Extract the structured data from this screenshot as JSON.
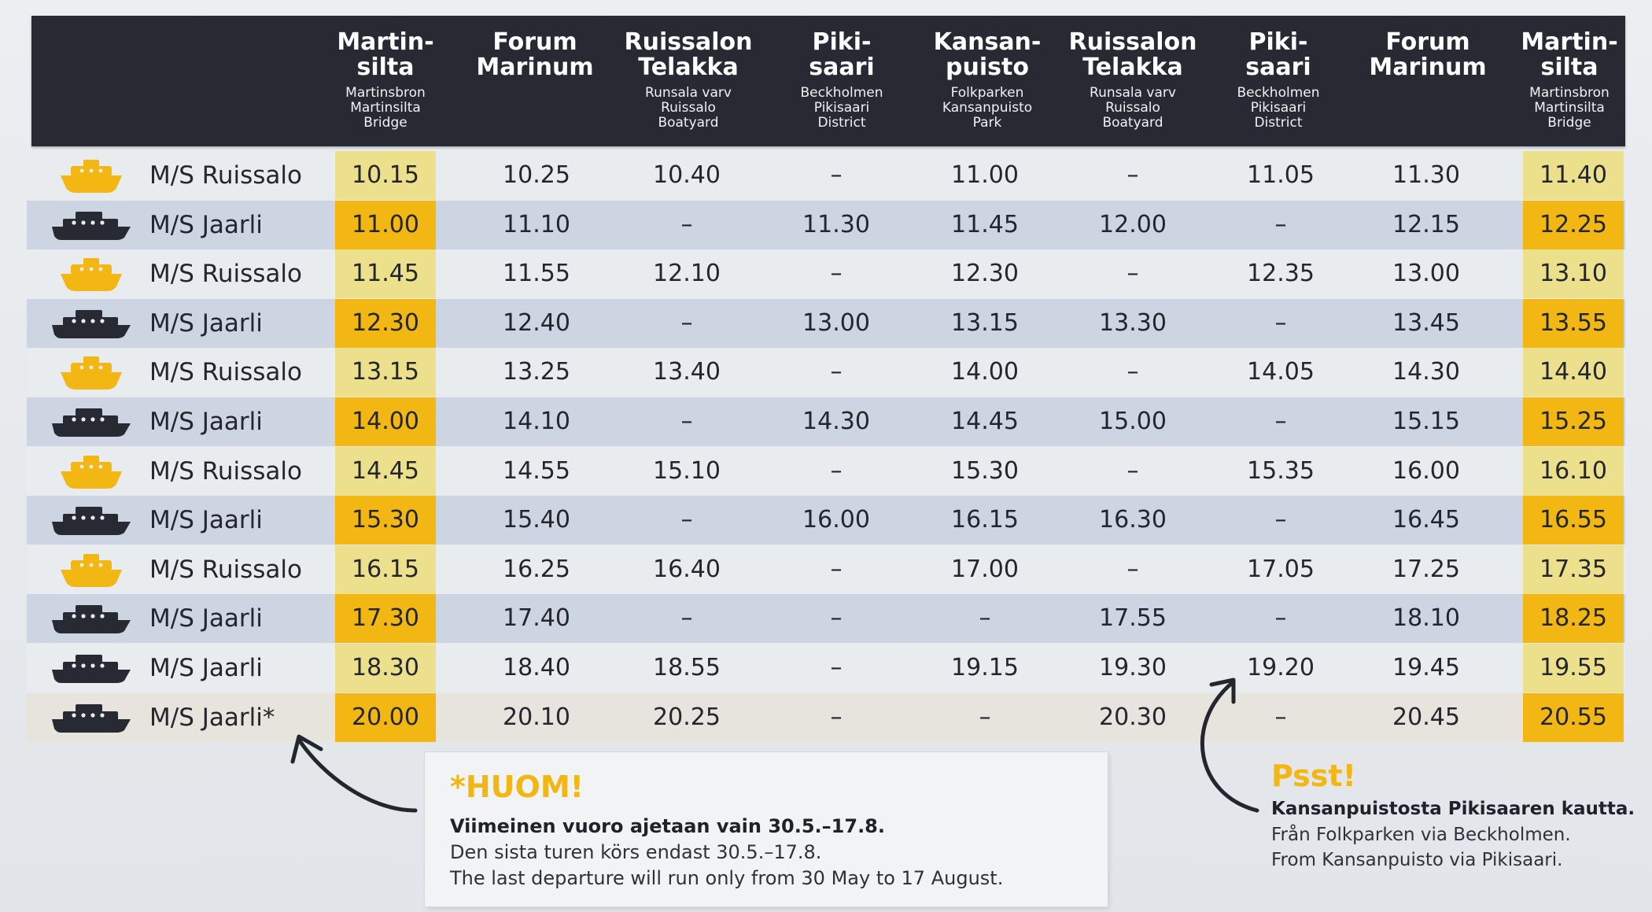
{
  "header": {
    "columns": [
      {
        "name": "Martin-\nsilta",
        "sub": "Martinsbron\nMartinsilta\nBridge"
      },
      {
        "name": "Forum\nMarinum",
        "sub": ""
      },
      {
        "name": "Ruissalon\nTelakka",
        "sub": "Runsala varv\nRuissalo\nBoatyard"
      },
      {
        "name": "Piki-\nsaari",
        "sub": "Beckholmen\nPikisaari\nDistrict"
      },
      {
        "name": "Kansan-\npuisto",
        "sub": "Folkparken\nKansanpuisto\nPark"
      },
      {
        "name": "Ruissalon\nTelakka",
        "sub": "Runsala varv\nRuissalo\nBoatyard"
      },
      {
        "name": "Piki-\nsaari",
        "sub": "Beckholmen\nPikisaari\nDistrict"
      },
      {
        "name": "Forum\nMarinum",
        "sub": ""
      },
      {
        "name": "Martin-\nsilta",
        "sub": "Martinsbron\nMartinsilta\nBridge"
      }
    ]
  },
  "colors": {
    "header_bg": "#272a33",
    "accent_yellow": "#f2b713",
    "pale_yellow": "#ece08d",
    "row_blue": "#ccd5e1",
    "boat_yellow": "#f2b713",
    "boat_navy": "#272a33"
  },
  "rows": [
    {
      "ship": "M/S Ruissalo",
      "boat_icon": "ferry-yellow-icon",
      "times": [
        "10.15",
        "10.25",
        "10.40",
        "–",
        "11.00",
        "–",
        "11.05",
        "11.30",
        "11.40"
      ]
    },
    {
      "ship": "M/S Jaarli",
      "boat_icon": "ferry-navy-icon",
      "times": [
        "11.00",
        "11.10",
        "–",
        "11.30",
        "11.45",
        "12.00",
        "–",
        "12.15",
        "12.25"
      ]
    },
    {
      "ship": "M/S Ruissalo",
      "boat_icon": "ferry-yellow-icon",
      "times": [
        "11.45",
        "11.55",
        "12.10",
        "–",
        "12.30",
        "–",
        "12.35",
        "13.00",
        "13.10"
      ]
    },
    {
      "ship": "M/S Jaarli",
      "boat_icon": "ferry-navy-icon",
      "times": [
        "12.30",
        "12.40",
        "–",
        "13.00",
        "13.15",
        "13.30",
        "–",
        "13.45",
        "13.55"
      ]
    },
    {
      "ship": "M/S Ruissalo",
      "boat_icon": "ferry-yellow-icon",
      "times": [
        "13.15",
        "13.25",
        "13.40",
        "–",
        "14.00",
        "–",
        "14.05",
        "14.30",
        "14.40"
      ]
    },
    {
      "ship": "M/S Jaarli",
      "boat_icon": "ferry-navy-icon",
      "times": [
        "14.00",
        "14.10",
        "–",
        "14.30",
        "14.45",
        "15.00",
        "–",
        "15.15",
        "15.25"
      ]
    },
    {
      "ship": "M/S Ruissalo",
      "boat_icon": "ferry-yellow-icon",
      "times": [
        "14.45",
        "14.55",
        "15.10",
        "–",
        "15.30",
        "–",
        "15.35",
        "16.00",
        "16.10"
      ]
    },
    {
      "ship": "M/S Jaarli",
      "boat_icon": "ferry-navy-icon",
      "times": [
        "15.30",
        "15.40",
        "–",
        "16.00",
        "16.15",
        "16.30",
        "–",
        "16.45",
        "16.55"
      ]
    },
    {
      "ship": "M/S Ruissalo",
      "boat_icon": "ferry-yellow-icon",
      "times": [
        "16.15",
        "16.25",
        "16.40",
        "–",
        "17.00",
        "–",
        "17.05",
        "17.25",
        "17.35"
      ]
    },
    {
      "ship": "M/S Jaarli",
      "boat_icon": "ferry-navy-icon",
      "times": [
        "17.30",
        "17.40",
        "–",
        "–",
        "–",
        "17.55",
        "–",
        "18.10",
        "18.25"
      ]
    },
    {
      "ship": "M/S Jaarli",
      "boat_icon": "ferry-navy-icon",
      "times": [
        "18.30",
        "18.40",
        "18.55",
        "–",
        "19.15",
        "19.30",
        "19.20",
        "19.45",
        "19.55"
      ]
    },
    {
      "ship": "M/S Jaarli*",
      "boat_icon": "ferry-navy-icon",
      "times": [
        "20.00",
        "20.10",
        "20.25",
        "–",
        "–",
        "20.30",
        "–",
        "20.45",
        "20.55"
      ]
    }
  ],
  "note": {
    "title": "*HUOM!",
    "line_fi": "Viimeinen vuoro ajetaan vain 30.5.–17.8.",
    "line_sv": "Den sista turen körs endast 30.5.–17.8.",
    "line_en": "The last departure will run only from 30 May to 17 August."
  },
  "psst": {
    "title": "Psst!",
    "line_fi": "Kansanpuistosta Pikisaaren kautta.",
    "line_sv": "Från Folkparken via Beckholmen.",
    "line_en": "From Kansanpuisto via Pikisaari."
  }
}
